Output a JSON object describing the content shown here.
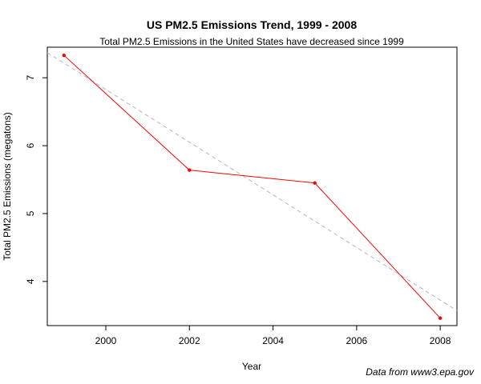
{
  "chart_data": {
    "type": "line",
    "title": "US PM2.5 Emissions Trend, 1999 - 2008",
    "subtitle": "Total PM2.5 Emissions in the United States have decreased since 1999",
    "xlabel": "Year",
    "ylabel": "Total PM2.5 Emissions (megatons)",
    "x_ticks": [
      2000,
      2002,
      2004,
      2006,
      2008
    ],
    "y_ticks": [
      4,
      5,
      6,
      7
    ],
    "xlim": [
      1998.6,
      2008.4
    ],
    "ylim": [
      3.35,
      7.45
    ],
    "series": [
      {
        "x": [
          1999,
          2002,
          2005,
          2008
        ],
        "values": [
          7.33,
          5.64,
          5.45,
          3.46
        ],
        "color": "#ff0000"
      }
    ],
    "trend_line": {
      "color": "#b4b4c8",
      "style": "dashed",
      "x_start": 1998.6,
      "y_start": 7.37,
      "x_end": 2008.4,
      "y_end": 3.57
    },
    "grid": false,
    "legend": "none",
    "source_note": "Data from www3.epa.gov"
  }
}
